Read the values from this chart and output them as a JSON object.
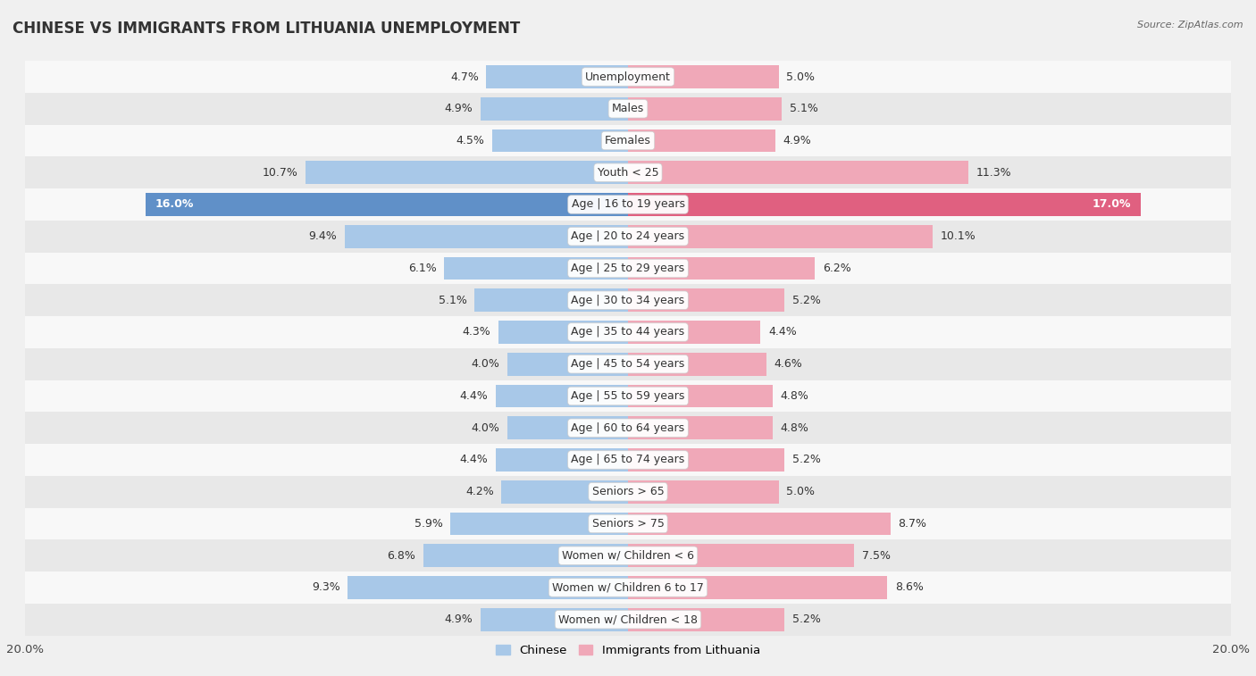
{
  "title": "CHINESE VS IMMIGRANTS FROM LITHUANIA UNEMPLOYMENT",
  "source": "Source: ZipAtlas.com",
  "categories": [
    "Unemployment",
    "Males",
    "Females",
    "Youth < 25",
    "Age | 16 to 19 years",
    "Age | 20 to 24 years",
    "Age | 25 to 29 years",
    "Age | 30 to 34 years",
    "Age | 35 to 44 years",
    "Age | 45 to 54 years",
    "Age | 55 to 59 years",
    "Age | 60 to 64 years",
    "Age | 65 to 74 years",
    "Seniors > 65",
    "Seniors > 75",
    "Women w/ Children < 6",
    "Women w/ Children 6 to 17",
    "Women w/ Children < 18"
  ],
  "chinese_values": [
    4.7,
    4.9,
    4.5,
    10.7,
    16.0,
    9.4,
    6.1,
    5.1,
    4.3,
    4.0,
    4.4,
    4.0,
    4.4,
    4.2,
    5.9,
    6.8,
    9.3,
    4.9
  ],
  "lithuania_values": [
    5.0,
    5.1,
    4.9,
    11.3,
    17.0,
    10.1,
    6.2,
    5.2,
    4.4,
    4.6,
    4.8,
    4.8,
    5.2,
    5.0,
    8.7,
    7.5,
    8.6,
    5.2
  ],
  "chinese_color": "#a8c8e8",
  "lithuania_color": "#f0a8b8",
  "chinese_highlight_color": "#6090c8",
  "lithuania_highlight_color": "#e06080",
  "axis_max": 20.0,
  "background_color": "#f0f0f0",
  "row_bg_light": "#f8f8f8",
  "row_bg_dark": "#e8e8e8",
  "bar_height": 0.72,
  "label_fontsize": 9.0,
  "category_fontsize": 9.0,
  "title_fontsize": 12,
  "legend_chinese": "Chinese",
  "legend_lithuania": "Immigrants from Lithuania"
}
